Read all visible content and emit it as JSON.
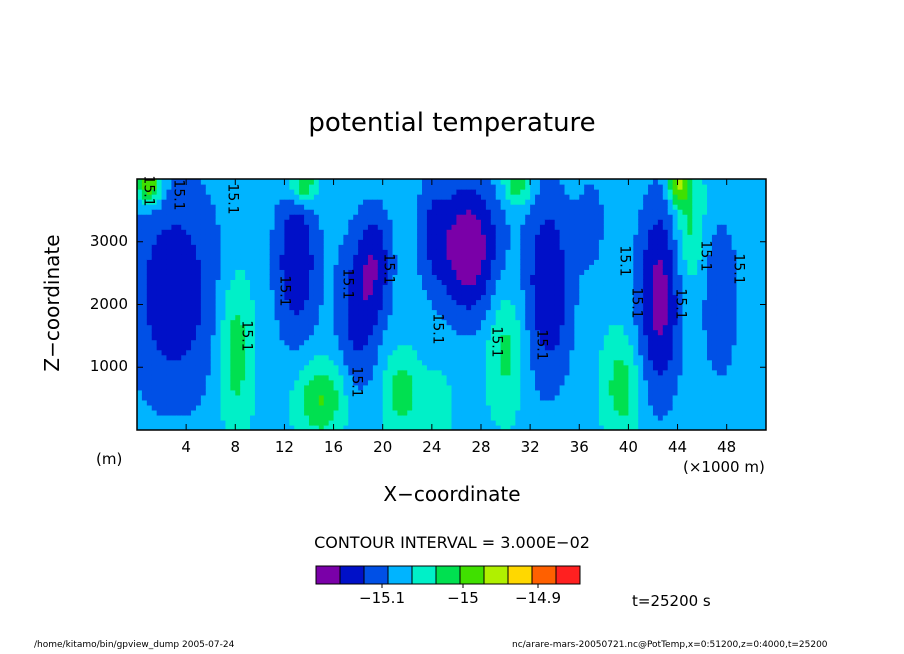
{
  "chart_data": {
    "type": "heatmap",
    "title": "potential temperature",
    "xlabel": "X−coordinate",
    "ylabel": "Z−coordinate",
    "x_unit_left": "(m)",
    "x_unit_right": "(×1000 m)",
    "x_ticks": [
      "4",
      "8",
      "12",
      "16",
      "20",
      "24",
      "28",
      "32",
      "36",
      "40",
      "44",
      "48"
    ],
    "x_tick_values": [
      4,
      8,
      12,
      16,
      20,
      24,
      28,
      32,
      36,
      40,
      44,
      48
    ],
    "y_ticks": [
      "1000",
      "2000",
      "3000"
    ],
    "y_tick_values": [
      1000,
      2000,
      3000
    ],
    "xlim": [
      0,
      51.2
    ],
    "ylim": [
      0,
      4000
    ],
    "contour_interval_text": "CONTOUR INTERVAL = 3.000E−02",
    "contour_labels": [
      "15.1",
      "15.1",
      "15.1",
      "15.1",
      "15.1",
      "15.1",
      "15.1",
      "15.1",
      "15.1",
      "15.1",
      "15.1",
      "15.1",
      "15.1",
      "15.1",
      "15.1",
      "15.1"
    ],
    "colorbar": {
      "colors": [
        "#7a00a8",
        "#0010c8",
        "#0050e6",
        "#00b4ff",
        "#00f0c8",
        "#00e050",
        "#40e000",
        "#b0f000",
        "#ffd800",
        "#ff6000",
        "#ff2020"
      ],
      "tick_labels": [
        "−15.1",
        "−15",
        "−14.9"
      ],
      "tick_values": [
        -15.1,
        -15.0,
        -14.9
      ]
    },
    "time_text": "t=25200 s"
  },
  "footer": {
    "left": "/home/kitamo/bin/gpview_dump   2005-07-24",
    "right": "nc/arare-mars-20050721.nc@PotTemp,x=0:51200,z=0:4000,t=25200"
  }
}
